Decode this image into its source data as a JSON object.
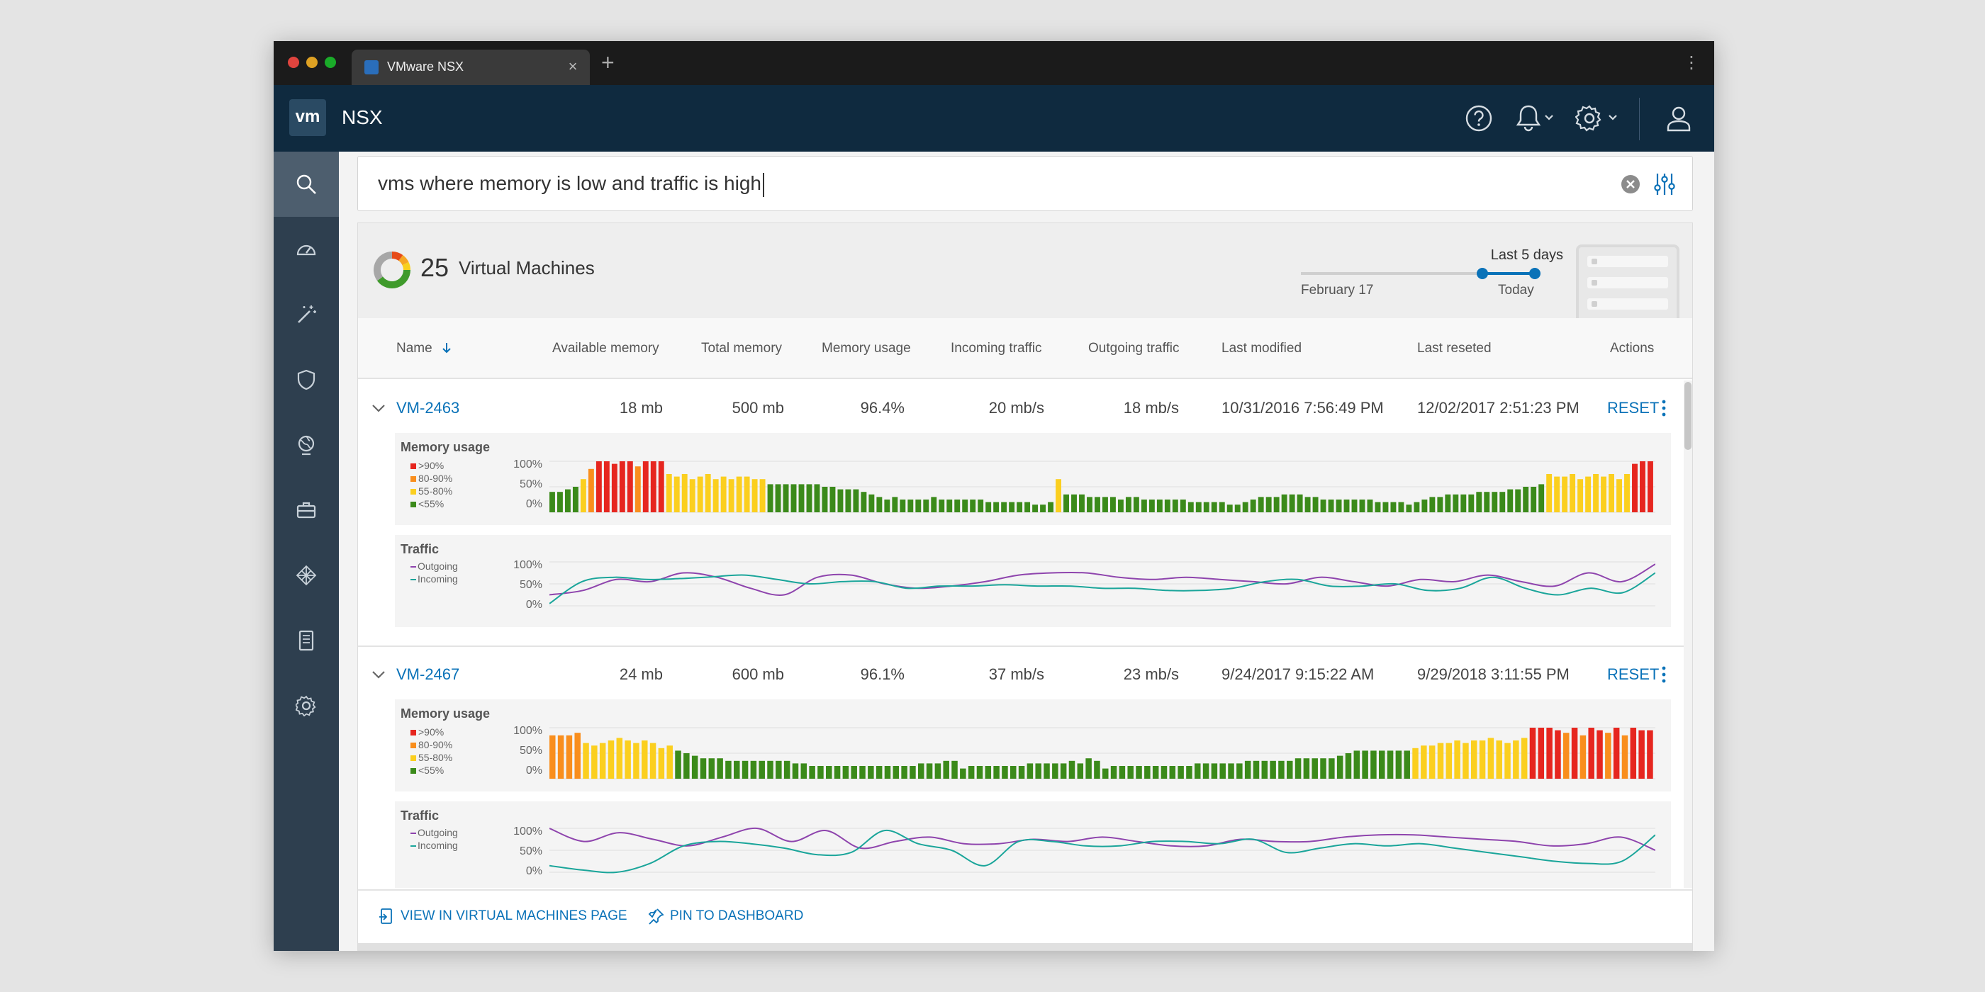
{
  "browser": {
    "tab_title": "VMware NSX",
    "new_tab_symbol": "+",
    "close_symbol": "×"
  },
  "header": {
    "logo_text": "vm",
    "app_name": "NSX",
    "icons": [
      "help-icon",
      "notifications-bell-icon",
      "settings-gear-icon",
      "user-profile-icon"
    ]
  },
  "sidebar": {
    "items": [
      {
        "name": "search",
        "icon": "search-icon",
        "active": true
      },
      {
        "name": "dashboard",
        "icon": "dashboard-gauge-icon",
        "active": false
      },
      {
        "name": "tools",
        "icon": "magic-wand-icon",
        "active": false
      },
      {
        "name": "security",
        "icon": "shield-icon",
        "active": false
      },
      {
        "name": "networking",
        "icon": "globe-network-icon",
        "active": false
      },
      {
        "name": "inventory",
        "icon": "briefcase-icon",
        "active": false
      },
      {
        "name": "plugins",
        "icon": "plugin-grid-icon",
        "active": false
      },
      {
        "name": "documents",
        "icon": "document-icon",
        "active": false
      },
      {
        "name": "system",
        "icon": "system-gear-icon",
        "active": false
      }
    ]
  },
  "search": {
    "query": "vms where memory is low and traffic is high"
  },
  "summary": {
    "count": "25",
    "label": "Virtual Machines",
    "donut_colors": [
      "#e64a19",
      "#f5a623",
      "#f8d01c",
      "#3f9a2b",
      "#a7a7a7"
    ],
    "range_title": "Last 5 days",
    "range_from": "February 17",
    "range_to": "Today"
  },
  "table": {
    "columns": {
      "name": "Name",
      "available_memory": "Available memory",
      "total_memory": "Total memory",
      "memory_usage": "Memory usage",
      "incoming_traffic": "Incoming traffic",
      "outgoing_traffic": "Outgoing traffic",
      "last_modified": "Last modified",
      "last_reseted": "Last reseted",
      "actions": "Actions"
    },
    "sort_icon": "arrow-down-icon"
  },
  "rows": [
    {
      "name": "VM-2463",
      "available_memory": "18 mb",
      "total_memory": "500 mb",
      "memory_usage": "96.4%",
      "incoming_traffic": "20 mb/s",
      "outgoing_traffic": "18 mb/s",
      "last_modified": "10/31/2016 7:56:49 PM",
      "last_reseted": "12/02/2017 2:51:23 PM",
      "action": "RESET",
      "memory_chart": {
        "title": "Memory usage",
        "legend": [
          ">90%",
          "80-90%",
          "55-80%",
          "<55%"
        ],
        "yticks": [
          "100%",
          "50%",
          "0%"
        ],
        "values": [
          40,
          40,
          45,
          50,
          65,
          85,
          100,
          100,
          95,
          100,
          100,
          90,
          100,
          100,
          100,
          75,
          70,
          75,
          65,
          70,
          75,
          65,
          70,
          65,
          70,
          70,
          65,
          65,
          55,
          55,
          55,
          55,
          55,
          55,
          55,
          50,
          50,
          45,
          45,
          45,
          40,
          35,
          30,
          25,
          30,
          25,
          25,
          25,
          25,
          30,
          25,
          25,
          25,
          25,
          25,
          25,
          20,
          20,
          20,
          20,
          20,
          20,
          15,
          15,
          20,
          65,
          35,
          35,
          35,
          30,
          30,
          30,
          30,
          25,
          30,
          30,
          25,
          25,
          25,
          25,
          25,
          25,
          20,
          20,
          20,
          20,
          20,
          15,
          15,
          20,
          25,
          30,
          30,
          30,
          35,
          35,
          35,
          30,
          30,
          25,
          25,
          25,
          25,
          25,
          25,
          25,
          20,
          20,
          20,
          20,
          15,
          20,
          25,
          30,
          30,
          35,
          35,
          35,
          35,
          40,
          40,
          40,
          40,
          45,
          45,
          50,
          50,
          55,
          75,
          70,
          70,
          75,
          65,
          70,
          75,
          70,
          75,
          65,
          75,
          95,
          100,
          100
        ]
      },
      "traffic_chart": {
        "title": "Traffic",
        "legend": [
          "Outgoing",
          "Incoming"
        ],
        "yticks": [
          "100%",
          "50%",
          "0%"
        ],
        "outgoing": [
          25,
          35,
          60,
          55,
          75,
          65,
          40,
          25,
          65,
          70,
          50,
          40,
          45,
          55,
          70,
          75,
          75,
          65,
          60,
          65,
          60,
          55,
          50,
          65,
          55,
          45,
          60,
          55,
          70,
          55,
          45,
          75,
          55,
          95
        ],
        "incoming": [
          5,
          55,
          65,
          60,
          62,
          66,
          70,
          60,
          50,
          55,
          55,
          40,
          45,
          45,
          48,
          45,
          45,
          40,
          40,
          35,
          35,
          40,
          55,
          60,
          45,
          45,
          50,
          35,
          40,
          65,
          40,
          25,
          40,
          30,
          75
        ]
      }
    },
    {
      "name": "VM-2467",
      "available_memory": "24 mb",
      "total_memory": "600 mb",
      "memory_usage": "96.1%",
      "incoming_traffic": "37 mb/s",
      "outgoing_traffic": "23 mb/s",
      "last_modified": "9/24/2017 9:15:22 AM",
      "last_reseted": "9/29/2018 3:11:55 PM",
      "action": "RESET",
      "memory_chart": {
        "title": "Memory usage",
        "legend": [
          ">90%",
          "80-90%",
          "55-80%",
          "<55%"
        ],
        "yticks": [
          "100%",
          "50%",
          "0%"
        ],
        "values": [
          85,
          85,
          85,
          90,
          70,
          65,
          70,
          75,
          80,
          75,
          70,
          75,
          70,
          60,
          65,
          55,
          50,
          45,
          40,
          40,
          40,
          35,
          35,
          35,
          35,
          35,
          35,
          35,
          35,
          30,
          30,
          25,
          25,
          25,
          25,
          25,
          25,
          25,
          25,
          25,
          25,
          25,
          25,
          25,
          30,
          30,
          30,
          35,
          35,
          20,
          25,
          25,
          25,
          25,
          25,
          25,
          25,
          30,
          30,
          30,
          30,
          30,
          35,
          30,
          40,
          35,
          20,
          25,
          25,
          25,
          25,
          25,
          25,
          25,
          25,
          25,
          25,
          30,
          30,
          30,
          30,
          30,
          30,
          35,
          35,
          35,
          35,
          35,
          35,
          40,
          40,
          40,
          40,
          40,
          45,
          50,
          55,
          55,
          55,
          55,
          55,
          55,
          55,
          60,
          65,
          65,
          70,
          70,
          75,
          70,
          75,
          75,
          80,
          75,
          70,
          75,
          80,
          100,
          100,
          100,
          95,
          90,
          100,
          85,
          100,
          95,
          90,
          100,
          85,
          100,
          95,
          95
        ]
      },
      "traffic_chart": {
        "title": "Traffic",
        "legend": [
          "Outgoing",
          "Incoming"
        ],
        "yticks": [
          "100%",
          "50%",
          "0%"
        ],
        "outgoing": [
          100,
          70,
          90,
          75,
          60,
          80,
          100,
          70,
          95,
          55,
          70,
          80,
          65,
          65,
          75,
          70,
          80,
          70,
          60,
          60,
          75,
          70,
          70,
          80,
          85,
          85,
          80,
          75,
          70,
          60,
          65,
          80,
          50
        ],
        "incoming": [
          15,
          5,
          0,
          20,
          60,
          70,
          65,
          55,
          40,
          45,
          95,
          65,
          50,
          15,
          70,
          70,
          60,
          60,
          70,
          70,
          65,
          75,
          45,
          55,
          65,
          60,
          65,
          55,
          45,
          35,
          25,
          20,
          25,
          85
        ]
      }
    }
  ],
  "footer": {
    "view_link": "VIEW IN VIRTUAL MACHINES PAGE",
    "pin_link": "PIN TO DASHBOARD"
  },
  "colors": {
    "accent": "#0a72b8",
    "header_bg": "#0f2a3f",
    "sidebar_bg": "#2e3f4f",
    "mem_gt90": "#e6261f",
    "mem_80_90": "#f98e1d",
    "mem_55_80": "#fbcf1f",
    "mem_lt55": "#3b8a1a",
    "outgoing": "#8e44ad",
    "incoming": "#1aa59a"
  }
}
